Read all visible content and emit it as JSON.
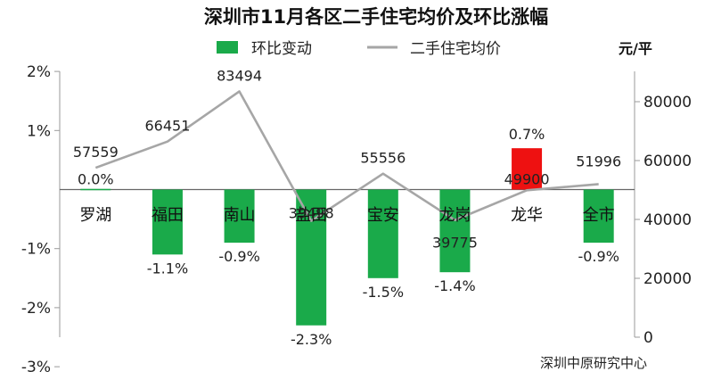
{
  "chart_data": {
    "type": "bar",
    "title": "深圳市11月各区二手住宅均价及环比涨幅",
    "categories": [
      "罗湖",
      "福田",
      "南山",
      "盐田",
      "宝安",
      "龙岗",
      "龙华",
      "全市"
    ],
    "series": [
      {
        "name": "环比变动",
        "type": "bar",
        "axis": "left",
        "values": [
          0.0,
          -1.1,
          -0.9,
          -2.3,
          -1.5,
          -1.4,
          0.7,
          -0.9
        ],
        "labels": [
          "0.0%",
          "-1.1%",
          "-0.9%",
          "-2.3%",
          "-1.5%",
          "-1.4%",
          "0.7%",
          "-0.9%"
        ],
        "color": "#1aaa4a",
        "highlight_color": "#ee1111"
      },
      {
        "name": "二手住宅均价",
        "type": "line",
        "axis": "right",
        "values": [
          57559,
          66451,
          83494,
          39498,
          55556,
          39775,
          49900,
          51996
        ],
        "labels": [
          "57559",
          "66451",
          "83494",
          "39498",
          "55556",
          "39775",
          "49900",
          "51996"
        ],
        "color": "#a6a6a6"
      }
    ],
    "y_left": {
      "ticks": [
        2,
        1,
        -1,
        -2,
        -3
      ],
      "tick_labels": [
        "2%",
        "1%",
        "-1%",
        "-2%",
        "-3%"
      ],
      "range": [
        -3,
        2.5
      ]
    },
    "y_right": {
      "ticks": [
        80000,
        60000,
        40000,
        20000,
        0
      ],
      "tick_labels": [
        "80000",
        "60000",
        "40000",
        "20000",
        "0"
      ],
      "range": [
        0,
        90000
      ],
      "unit": "元/平"
    },
    "legend_position": "top",
    "grid": false,
    "source": "深圳中原研究中心"
  }
}
